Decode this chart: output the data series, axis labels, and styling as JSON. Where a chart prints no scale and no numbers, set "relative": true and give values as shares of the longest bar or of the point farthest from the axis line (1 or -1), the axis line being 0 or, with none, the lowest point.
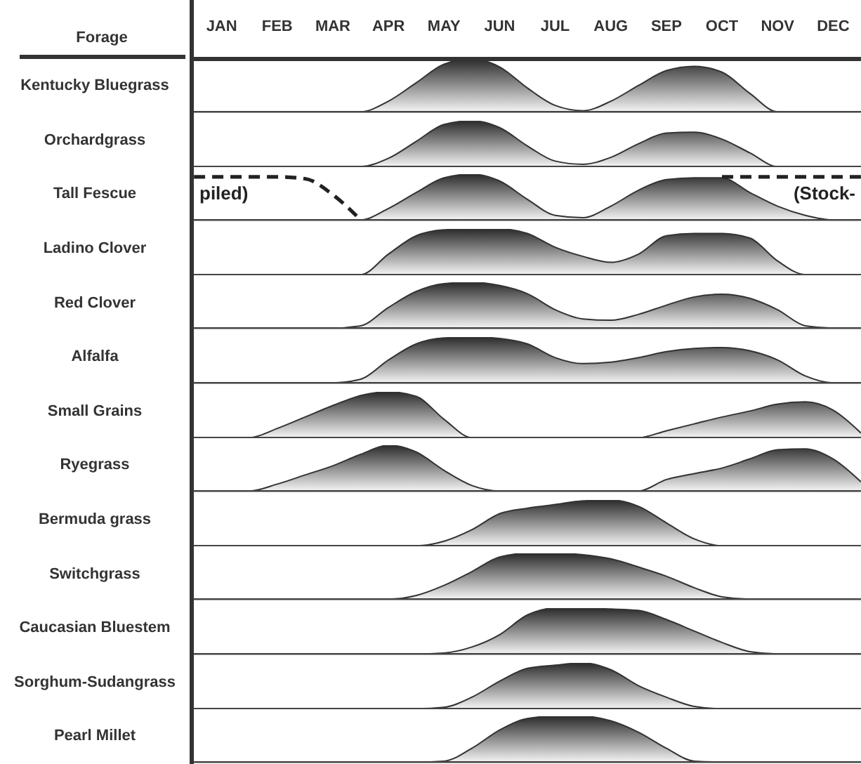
{
  "chart_data": [
    {
      "type": "area",
      "relative": true,
      "tick_labels": "x",
      "annotations": [
        "Forage"
      ],
      "ylabel": "Kentucky Bluegrass",
      "categories": [
        null,
        "JAN",
        null,
        "FEB",
        null,
        "MAR",
        null,
        "APR",
        null,
        "MAY",
        null,
        "JUN",
        null,
        "JUL",
        null,
        "AUG",
        null,
        "SEP",
        null,
        "OCT",
        null,
        "NOV",
        null,
        "DEC",
        null
      ],
      "series": [
        {
          "color": "#2b2b2b",
          "values": [
            0,
            0,
            0,
            0,
            0,
            0,
            0,
            0.2,
            0.55,
            0.9,
            1,
            0.85,
            0.45,
            0.12,
            0.02,
            0.2,
            0.5,
            0.78,
            0.86,
            0.75,
            0.35,
            0,
            0,
            0,
            0
          ]
        }
      ]
    },
    {
      "type": "area",
      "relative": true,
      "tick_labels": false,
      "ylabel": "Orchardgrass",
      "series": [
        {
          "color": "#2b2b2b",
          "values": [
            0,
            0,
            0,
            0,
            0,
            0,
            0,
            0.18,
            0.55,
            0.92,
            1,
            0.85,
            0.45,
            0.12,
            0.05,
            0.2,
            0.5,
            0.73,
            0.75,
            0.6,
            0.3,
            0,
            0,
            0,
            0
          ]
        }
      ]
    },
    {
      "type": "area",
      "relative": true,
      "tick_labels": false,
      "ylabel": "Tall Fescue",
      "annotations": [
        "piled)",
        "(Stock-"
      ],
      "series": [
        {
          "color": "#2b2b2b",
          "values": [
            0,
            0,
            0,
            0,
            0,
            0,
            0,
            0.25,
            0.6,
            0.92,
            1,
            0.85,
            0.45,
            0.1,
            0.05,
            0.3,
            0.65,
            0.88,
            0.92,
            0.92,
            0.6,
            0.3,
            0.1,
            0,
            0
          ]
        },
        {
          "type": "line",
          "line_style": "dashed",
          "color": "#222222",
          "values": [
            0.94,
            0.94,
            0.94,
            0.94,
            0.9,
            0.55,
            0,
            null,
            null,
            null,
            null,
            null,
            null,
            null,
            null,
            null,
            null,
            null,
            null,
            0.94,
            0.94,
            0.94,
            0.94,
            0.94,
            0.94
          ]
        }
      ]
    },
    {
      "type": "area",
      "relative": true,
      "tick_labels": false,
      "ylabel": "Ladino Clover",
      "series": [
        {
          "color": "#2b2b2b",
          "values": [
            0,
            0,
            0,
            0,
            0,
            0,
            0,
            0.45,
            0.85,
            0.98,
            1,
            1,
            0.9,
            0.6,
            0.4,
            0.27,
            0.45,
            0.85,
            0.9,
            0.9,
            0.8,
            0.3,
            0,
            0,
            0
          ]
        }
      ]
    },
    {
      "type": "area",
      "relative": true,
      "tick_labels": false,
      "ylabel": "Red Clover",
      "series": [
        {
          "color": "#2b2b2b",
          "values": [
            0,
            0,
            0,
            0,
            0,
            0,
            0.05,
            0.45,
            0.8,
            0.97,
            1,
            0.93,
            0.75,
            0.4,
            0.2,
            0.17,
            0.3,
            0.5,
            0.68,
            0.74,
            0.65,
            0.4,
            0.05,
            0,
            0
          ]
        }
      ]
    },
    {
      "type": "area",
      "relative": true,
      "tick_labels": false,
      "ylabel": "Alfalfa",
      "series": [
        {
          "color": "#2b2b2b",
          "values": [
            0,
            0,
            0,
            0,
            0,
            0,
            0.08,
            0.5,
            0.85,
            0.98,
            1,
            0.97,
            0.85,
            0.55,
            0.42,
            0.45,
            0.55,
            0.68,
            0.75,
            0.77,
            0.7,
            0.5,
            0.15,
            0,
            0
          ]
        }
      ]
    },
    {
      "type": "area",
      "relative": true,
      "tick_labels": false,
      "ylabel": "Small Grains",
      "series": [
        {
          "color": "#2b2b2b",
          "values": [
            0,
            0,
            0,
            0.2,
            0.45,
            0.7,
            0.92,
            1,
            0.9,
            0.4,
            0,
            0,
            0,
            0,
            0,
            0,
            0,
            0.15,
            0.3,
            0.45,
            0.58,
            0.73,
            0.78,
            0.6,
            0.1
          ]
        }
      ]
    },
    {
      "type": "area",
      "relative": true,
      "tick_labels": false,
      "ylabel": "Ryegrass",
      "series": [
        {
          "color": "#2b2b2b",
          "values": [
            0,
            0,
            0,
            0.15,
            0.35,
            0.55,
            0.8,
            1,
            0.85,
            0.45,
            0.12,
            0,
            0,
            0,
            0,
            0,
            0,
            0.25,
            0.38,
            0.5,
            0.7,
            0.9,
            0.92,
            0.7,
            0.2
          ]
        }
      ]
    },
    {
      "type": "area",
      "relative": true,
      "tick_labels": false,
      "ylabel": "Bermuda grass",
      "series": [
        {
          "color": "#2b2b2b",
          "values": [
            0,
            0,
            0,
            0,
            0,
            0,
            0,
            0,
            0,
            0.1,
            0.35,
            0.7,
            0.82,
            0.9,
            0.98,
            1,
            0.86,
            0.5,
            0.15,
            0,
            0,
            0,
            0,
            0,
            0
          ]
        }
      ]
    },
    {
      "type": "area",
      "relative": true,
      "tick_labels": false,
      "ylabel": "Switchgrass",
      "series": [
        {
          "color": "#2b2b2b",
          "values": [
            0,
            0,
            0,
            0,
            0,
            0,
            0,
            0,
            0.08,
            0.3,
            0.6,
            0.92,
            1,
            1,
            0.97,
            0.88,
            0.7,
            0.5,
            0.25,
            0.05,
            0,
            0,
            0,
            0,
            0
          ]
        }
      ]
    },
    {
      "type": "area",
      "relative": true,
      "tick_labels": false,
      "ylabel": "Caucasian Bluestem",
      "series": [
        {
          "color": "#2b2b2b",
          "values": [
            0,
            0,
            0,
            0,
            0,
            0,
            0,
            0,
            0,
            0.02,
            0.15,
            0.42,
            0.85,
            1,
            1,
            0.98,
            0.95,
            0.75,
            0.5,
            0.25,
            0.05,
            0,
            0,
            0,
            0
          ]
        }
      ]
    },
    {
      "type": "area",
      "relative": true,
      "tick_labels": false,
      "ylabel": "Sorghum-Sudangrass",
      "series": [
        {
          "color": "#2b2b2b",
          "values": [
            0,
            0,
            0,
            0,
            0,
            0,
            0,
            0,
            0,
            0.03,
            0.25,
            0.6,
            0.88,
            0.95,
            1,
            0.85,
            0.5,
            0.25,
            0.05,
            0,
            0,
            0,
            0,
            0,
            0
          ]
        }
      ]
    },
    {
      "type": "area",
      "relative": true,
      "tick_labels": false,
      "ylabel": "Pearl Millet",
      "series": [
        {
          "color": "#2b2b2b",
          "values": [
            0,
            0,
            0,
            0,
            0,
            0,
            0,
            0,
            0,
            0.02,
            0.3,
            0.7,
            0.95,
            1,
            1,
            0.9,
            0.65,
            0.3,
            0.02,
            0,
            0,
            0,
            0,
            0,
            0
          ]
        }
      ]
    }
  ]
}
